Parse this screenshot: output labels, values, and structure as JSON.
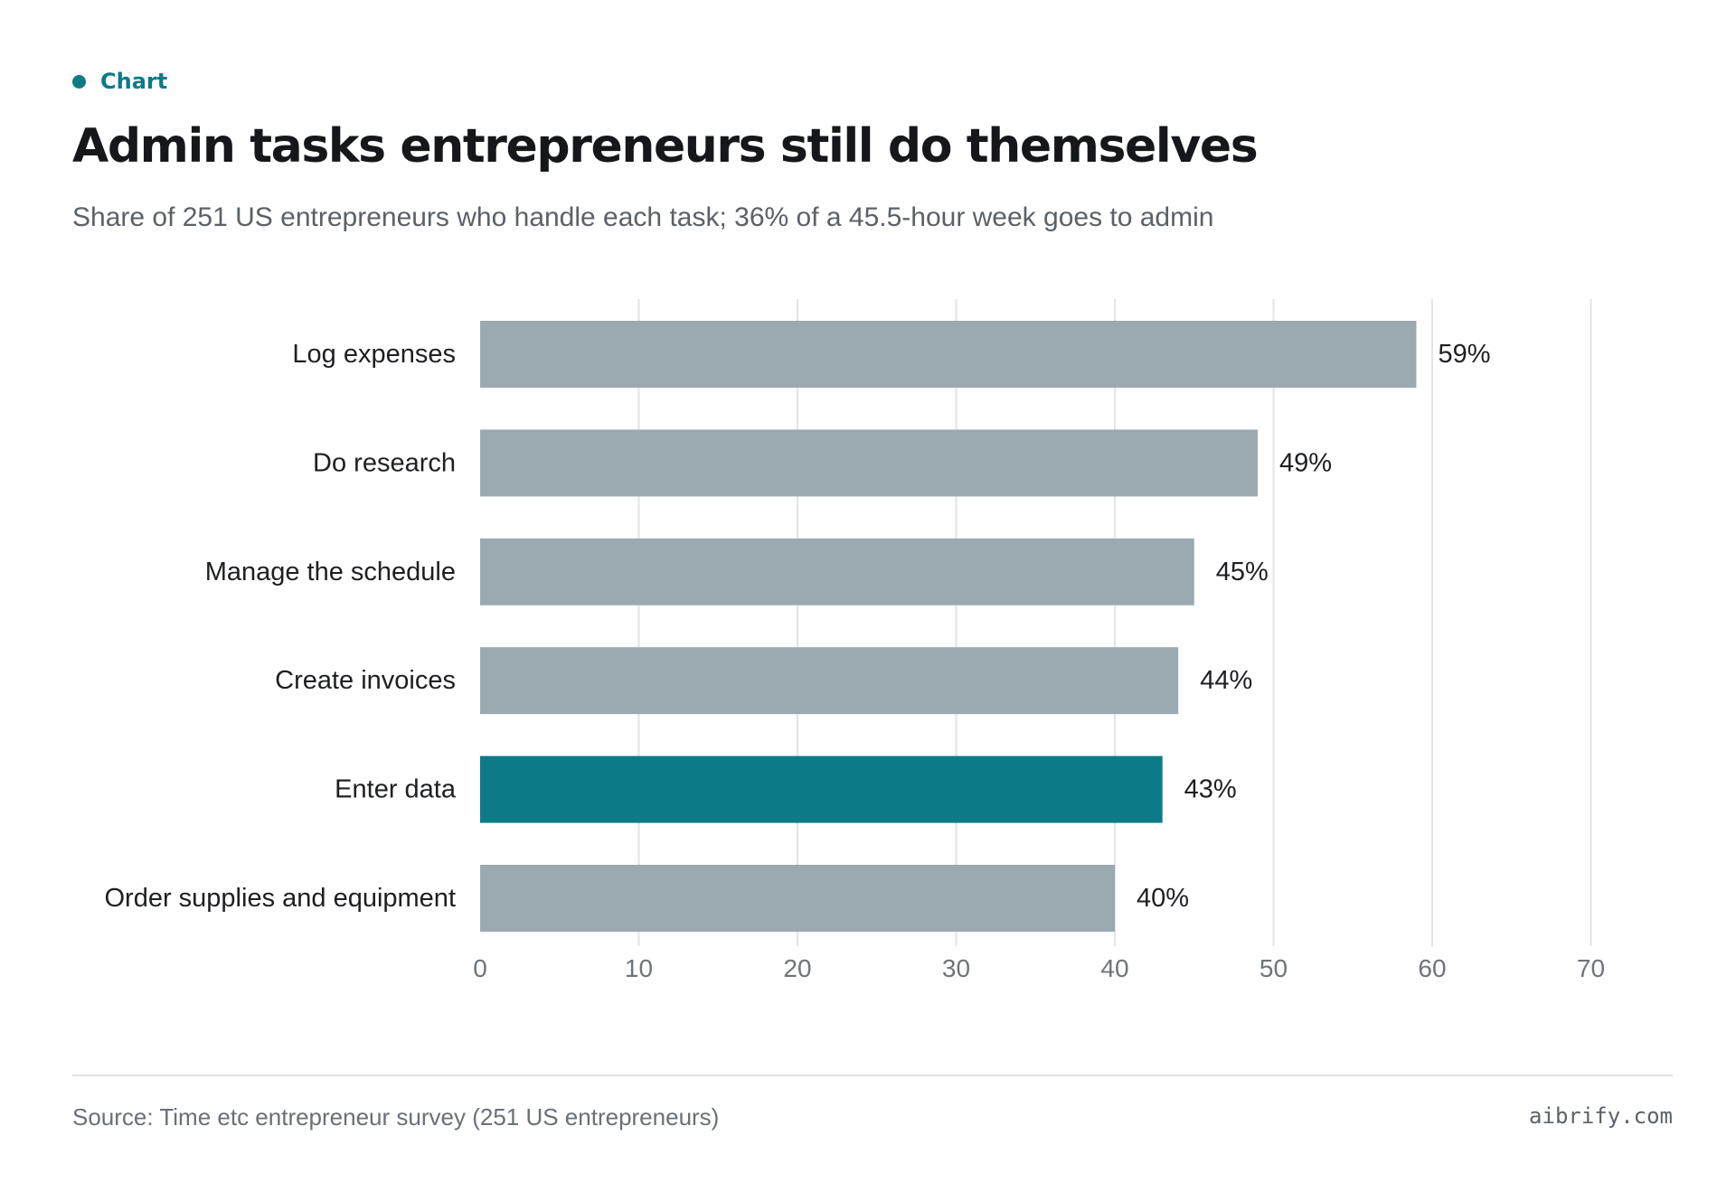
{
  "header": {
    "tag": "Chart",
    "title": "Admin tasks entrepreneurs still do themselves",
    "subtitle": "Share of 251 US entrepreneurs who handle each task; 36% of a 45.5-hour week goes to admin"
  },
  "footer": {
    "source": "Source: Time etc entrepreneur survey (251 US entrepreneurs)",
    "brand": "aibrify.com"
  },
  "colors": {
    "accent": "#0d7a87",
    "bar": "#9ba9b1",
    "gridline": "#e2e4e6"
  },
  "chart_data": {
    "type": "bar",
    "orientation": "horizontal",
    "title": "Admin tasks entrepreneurs still do themselves",
    "subtitle": "Share of 251 US entrepreneurs who handle each task; 36% of a 45.5-hour week goes to admin",
    "categories": [
      "Log expenses",
      "Do research",
      "Manage the schedule",
      "Create invoices",
      "Enter data",
      "Order supplies and equipment"
    ],
    "values": [
      59,
      49,
      45,
      44,
      43,
      40
    ],
    "value_labels": [
      "59%",
      "49%",
      "45%",
      "44%",
      "43%",
      "40%"
    ],
    "highlighted_category": "Enter data",
    "xlim": [
      0,
      70
    ],
    "xticks": [
      0,
      10,
      20,
      30,
      40,
      50,
      60,
      70
    ],
    "xlabel": "",
    "ylabel": "",
    "grid": true,
    "legend": "none"
  }
}
